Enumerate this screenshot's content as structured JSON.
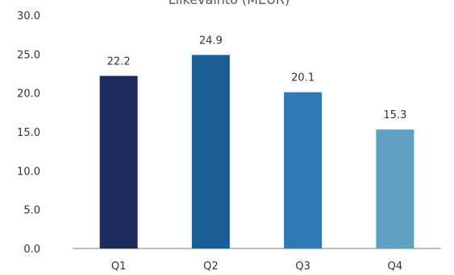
{
  "chart_data": {
    "type": "bar",
    "title": "Liikevaihto (MEUR)",
    "categories": [
      "Q1",
      "Q2",
      "Q3",
      "Q4"
    ],
    "values": [
      22.2,
      24.9,
      20.1,
      15.3
    ],
    "data_labels": [
      "22.2",
      "24.9",
      "20.1",
      "15.3"
    ],
    "y_ticks": [
      "0.0",
      "5.0",
      "10.0",
      "15.0",
      "20.0",
      "25.0",
      "30.0"
    ],
    "ylim": [
      0,
      30
    ],
    "grid": false,
    "legend": "none",
    "colors": [
      "#1f2a5c",
      "#1a5e96",
      "#2e7ab4",
      "#5fa0c2"
    ],
    "text_color": "#333333",
    "axis_color": "#7f7f7f"
  }
}
